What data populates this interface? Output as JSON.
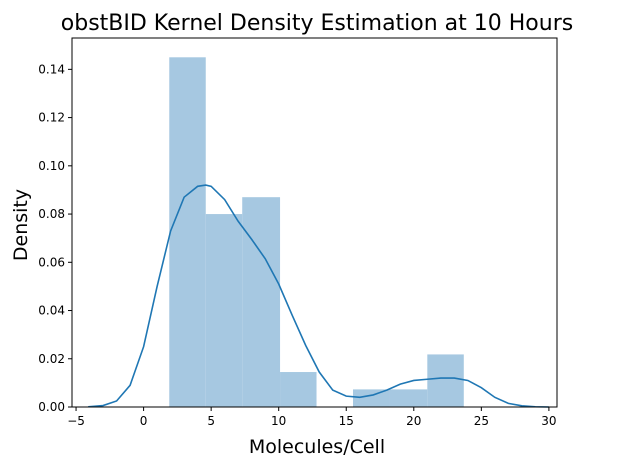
{
  "chart_data": {
    "type": "bar",
    "title": "obstBID Kernel Density Estimation at 10 Hours",
    "xlabel": "Molecules/Cell",
    "ylabel": "Density",
    "xlim": [
      -5.3,
      30.6
    ],
    "ylim": [
      0,
      0.153
    ],
    "xticks": [
      -5,
      0,
      5,
      10,
      15,
      20,
      25,
      30
    ],
    "xtick_labels": [
      "−5",
      "0",
      "5",
      "10",
      "15",
      "20",
      "25",
      "30"
    ],
    "yticks": [
      0,
      0.02,
      0.04,
      0.06,
      0.08,
      0.1,
      0.12,
      0.14
    ],
    "ytick_labels": [
      "0.00",
      "0.02",
      "0.04",
      "0.06",
      "0.08",
      "0.10",
      "0.12",
      "0.14"
    ],
    "grid": false,
    "histogram": {
      "color": "#a6c8e1",
      "bins": [
        {
          "x0": 1.9,
          "x1": 4.6,
          "density": 0.145
        },
        {
          "x0": 4.6,
          "x1": 7.3,
          "density": 0.08
        },
        {
          "x0": 7.3,
          "x1": 10.1,
          "density": 0.087
        },
        {
          "x0": 10.1,
          "x1": 12.8,
          "density": 0.0145
        },
        {
          "x0": 12.8,
          "x1": 15.5,
          "density": 0.0
        },
        {
          "x0": 15.5,
          "x1": 18.2,
          "density": 0.0073
        },
        {
          "x0": 18.2,
          "x1": 21.0,
          "density": 0.0073
        },
        {
          "x0": 21.0,
          "x1": 23.7,
          "density": 0.0218
        }
      ]
    },
    "kde": {
      "color": "#1f77b4",
      "x": [
        -4.1,
        -3,
        -2,
        -1,
        0,
        1,
        2,
        3,
        4,
        4.6,
        5,
        6,
        7,
        8,
        9,
        10,
        11,
        12,
        13,
        14,
        15,
        16,
        17,
        18,
        19,
        20,
        21,
        22,
        23,
        24,
        25,
        26,
        27,
        28,
        29,
        30
      ],
      "y": [
        0.0001,
        0.0006,
        0.0025,
        0.009,
        0.025,
        0.05,
        0.073,
        0.087,
        0.0915,
        0.092,
        0.0915,
        0.086,
        0.077,
        0.0695,
        0.0615,
        0.051,
        0.038,
        0.0255,
        0.0145,
        0.007,
        0.0045,
        0.004,
        0.005,
        0.007,
        0.0095,
        0.011,
        0.0115,
        0.012,
        0.012,
        0.011,
        0.008,
        0.004,
        0.0015,
        0.0005,
        0.0001,
        0.0
      ]
    }
  }
}
